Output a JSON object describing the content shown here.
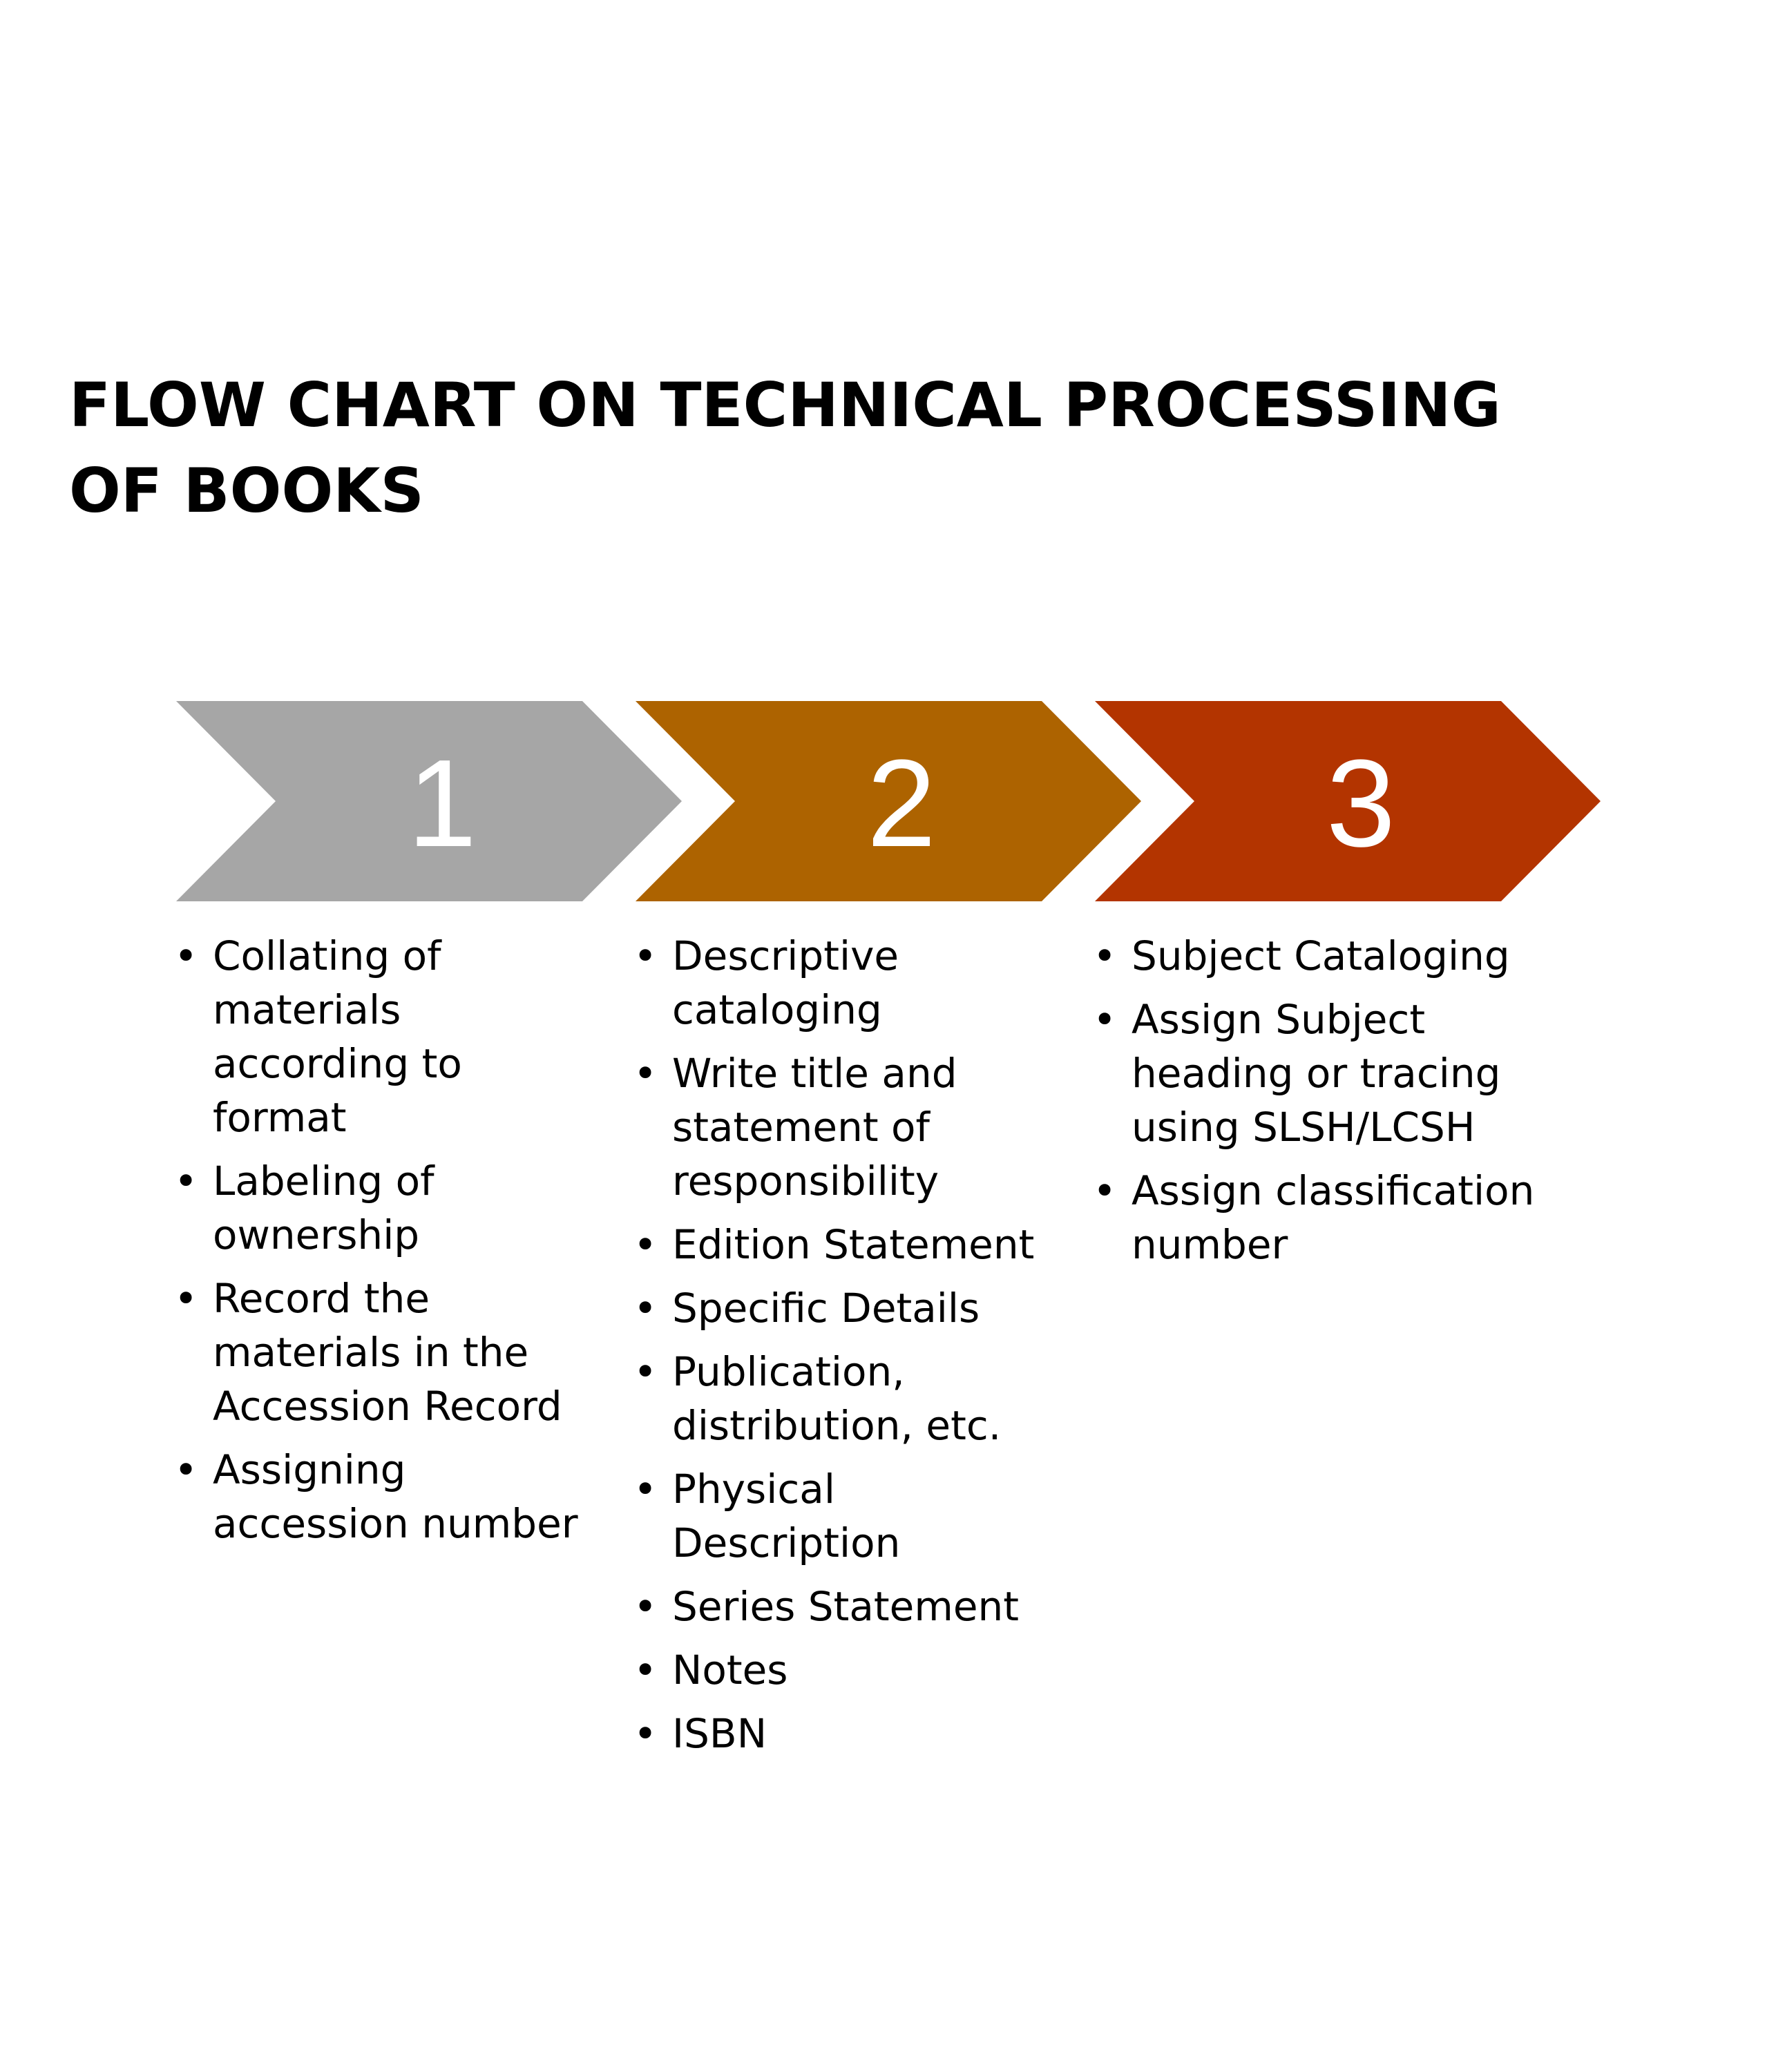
{
  "title": "FLOW CHART ON TECHNICAL PROCESSING OF BOOKS",
  "steps": [
    {
      "number": "1",
      "color": "#A6A6A6",
      "items": [
        "Collating of materials according to format",
        "Labeling of ownership",
        "Record the materials in the Accession Record",
        "Assigning accession number"
      ]
    },
    {
      "number": "2",
      "color": "#AD6300",
      "items": [
        "Descriptive cataloging",
        "Write title and statement of responsibility",
        "Edition Statement",
        "Specific Details",
        "Publication, distribution, etc.",
        "Physical Description",
        "Series Statement",
        "Notes",
        "ISBN"
      ]
    },
    {
      "number": "3",
      "color": "#B33400",
      "items": [
        "Subject Cataloging",
        "Assign Subject heading or tracing using SLSH/LCSH",
        "Assign classification number"
      ]
    }
  ]
}
